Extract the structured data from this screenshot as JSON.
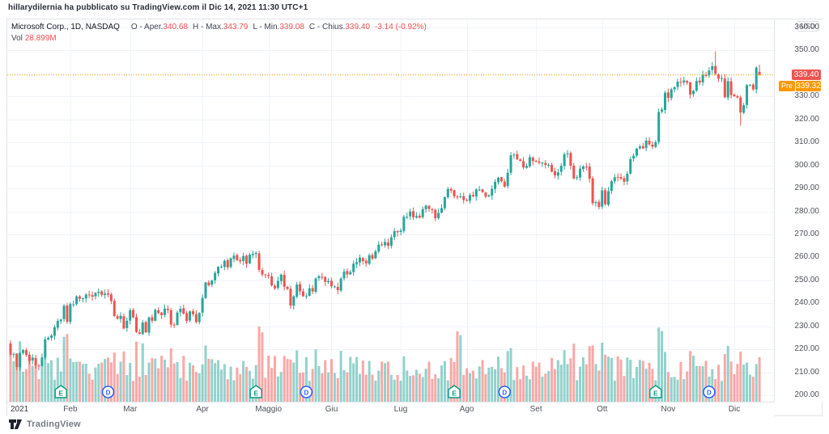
{
  "attribution": "hillarydilernia ha pubblicato su TradingView.com il Dic 14, 2021 11:30 UTC+1",
  "legend": {
    "title": "Microsoft Corp., 1D, NASDAQ",
    "open_label": "O - Aper.",
    "open_value": "340.68",
    "high_label": "H - Max.",
    "high_value": "343.79",
    "low_label": "L - Min.",
    "low_value": "339.08",
    "close_label": "C - Chius.",
    "close_value": "339.40",
    "change_value": "-3.14 (-0.92%)",
    "vol_label": "Vol",
    "vol_value": "28.899M"
  },
  "price_axis": {
    "currency_badge": "USD",
    "ticks": [
      "360.00",
      "350.00",
      "330.00",
      "320.00",
      "310.00",
      "300.00",
      "290.00",
      "280.00",
      "270.00",
      "260.00",
      "250.00",
      "240.00",
      "230.00",
      "220.00",
      "210.00",
      "200.00"
    ],
    "last_price_label": "339.40",
    "pre_tag": "Pre",
    "pre_price_label": "339.32"
  },
  "time_axis": {
    "year": {
      "label": "2021",
      "index": 0
    },
    "months": [
      {
        "label": "Feb",
        "index": 19
      },
      {
        "label": "Mar",
        "index": 38
      },
      {
        "label": "Apr",
        "index": 61
      },
      {
        "label": "Maggio",
        "index": 82
      },
      {
        "label": "Giu",
        "index": 102
      },
      {
        "label": "Lug",
        "index": 124
      },
      {
        "label": "Ago",
        "index": 145
      },
      {
        "label": "Set",
        "index": 167
      },
      {
        "label": "Ott",
        "index": 188
      },
      {
        "label": "Nov",
        "index": 209
      },
      {
        "label": "Dic",
        "index": 230
      }
    ]
  },
  "footer": {
    "brand": "TradingView"
  },
  "chart_data": {
    "type": "candlestick",
    "title": "Microsoft Corp., 1D, NASDAQ",
    "symbol_description": "Microsoft Corp.",
    "interval": "1D",
    "exchange": "NASDAQ",
    "currency": "USD",
    "date_range": [
      "2021-01-04",
      "2021-12-13"
    ],
    "ylim": [
      198,
      362
    ],
    "y_grid": {
      "min": 200,
      "max": 360,
      "step": 10
    },
    "last_candle": {
      "open": 340.68,
      "high": 343.79,
      "low": 339.08,
      "close": 339.4,
      "change": -3.14,
      "change_pct": -0.92,
      "volume": "28.899M"
    },
    "pre_market_price": 339.32,
    "first_open": 222.53,
    "closes": [
      217.69,
      217.9,
      212.25,
      218.29,
      219.62,
      217.49,
      214.93,
      216.34,
      213.02,
      212.65,
      216.44,
      224.34,
      224.97,
      225.95,
      229.53,
      232.33,
      232.9,
      238.93,
      231.96,
      239.65,
      239.51,
      243.0,
      242.01,
      242.2,
      243.77,
      243.63,
      242.82,
      244.49,
      244.99,
      243.7,
      244.2,
      243.79,
      240.97,
      234.51,
      233.27,
      234.55,
      228.99,
      232.38,
      236.94,
      233.87,
      227.56,
      226.73,
      231.6,
      227.39,
      233.78,
      232.42,
      237.13,
      235.75,
      234.81,
      237.71,
      237.04,
      230.72,
      230.35,
      235.99,
      237.58,
      235.46,
      232.34,
      236.48,
      235.24,
      231.85,
      235.77,
      242.35,
      249.07,
      247.86,
      249.9,
      253.25,
      255.85,
      255.91,
      258.49,
      255.59,
      259.5,
      260.74,
      258.74,
      258.26,
      260.58,
      257.17,
      261.15,
      261.55,
      261.97,
      254.56,
      252.51,
      252.18,
      251.86,
      247.79,
      246.48,
      249.73,
      252.46,
      247.18,
      246.23,
      239.0,
      243.03,
      248.15,
      245.18,
      243.08,
      243.12,
      246.48,
      245.17,
      250.78,
      251.72,
      251.49,
      249.31,
      249.68,
      247.4,
      247.3,
      245.71,
      250.79,
      253.81,
      252.57,
      253.59,
      257.24,
      257.89,
      259.89,
      258.36,
      257.38,
      260.9,
      259.43,
      262.63,
      265.51,
      265.27,
      266.69,
      265.02,
      268.72,
      271.4,
      270.9,
      271.6,
      277.65,
      277.66,
      279.93,
      277.42,
      277.94,
      277.32,
      280.98,
      282.51,
      281.03,
      280.75,
      277.01,
      279.32,
      281.4,
      286.14,
      289.67,
      289.05,
      286.54,
      286.22,
      286.5,
      284.91,
      284.82,
      287.12,
      286.51,
      289.52,
      289.46,
      288.33,
      286.44,
      286.95,
      289.81,
      292.85,
      294.6,
      293.08,
      290.73,
      296.77,
      304.36,
      304.65,
      302.62,
      302.01,
      299.09,
      299.72,
      303.59,
      301.88,
      301.83,
      301.15,
      301.14,
      300.18,
      300.21,
      297.25,
      295.71,
      296.99,
      299.79,
      304.82,
      305.22,
      299.87,
      294.3,
      294.8,
      298.58,
      299.56,
      299.35,
      294.17,
      283.52,
      284.0,
      281.92,
      289.1,
      283.11,
      288.76,
      293.11,
      294.85,
      294.85,
      294.23,
      292.88,
      296.31,
      302.75,
      304.21,
      307.29,
      308.23,
      307.41,
      310.76,
      309.16,
      308.13,
      310.11,
      323.17,
      324.35,
      331.62,
      329.37,
      333.13,
      334.0,
      336.44,
      336.06,
      336.99,
      335.95,
      330.8,
      332.43,
      336.72,
      336.07,
      339.51,
      339.12,
      341.27,
      343.11,
      339.83,
      337.68,
      337.91,
      329.68,
      336.63,
      330.59,
      330.08,
      329.49,
      323.01,
      326.19,
      334.92,
      334.97,
      333.1,
      342.54,
      339.4
    ],
    "overrides": {
      "wick_high": {
        "224": 349.67
      },
      "wick_low": {
        "232": 317.25
      }
    },
    "earnings_indices": [
      16,
      78,
      141,
      205
    ],
    "dividend_indices": [
      31,
      94,
      157,
      222
    ],
    "volume_axis": {
      "implied_max_M": 60,
      "typical_M": [
        15,
        40
      ]
    },
    "colors": {
      "up": "#26a69a",
      "down": "#ef5350",
      "vol_up": "rgba(38,166,154,0.5)",
      "vol_down": "rgba(239,83,80,0.5)",
      "pre_line": "#ff9800",
      "last_label_bg": "#ef5350",
      "pre_label_bg": "#ff9800",
      "grid": "#f0f3fa",
      "earnings_badge": "#089981",
      "dividend_badge": "#2962ff"
    }
  }
}
